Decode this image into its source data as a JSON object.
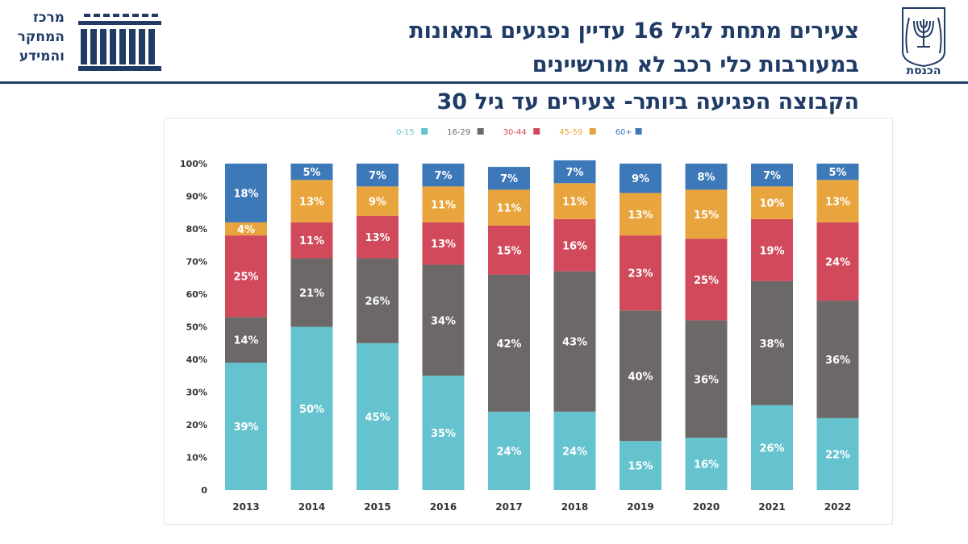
{
  "header": {
    "title_line1": "צעירים מתחת לגיל 16 עדיין נפגעים בתאונות",
    "title_line2": "במעורבות כלי רכב לא מורשיינים",
    "subtitle": "הקבוצה הפגיעה ביותר- צעירים עד גיל 30",
    "logo_left_text": [
      "מרכז",
      "המחקר",
      "והמידע"
    ],
    "logo_right_text": "הכנסת"
  },
  "colors": {
    "0-15": "#64c3cf",
    "16-29": "#6d6868",
    "30-44": "#d14a5c",
    "45-59": "#e9a53d",
    "60+": "#3d78b9",
    "brand": "#1f3b66"
  },
  "chart_data": {
    "type": "bar",
    "stacked": true,
    "categories": [
      "2013",
      "2014",
      "2015",
      "2016",
      "2017",
      "2018",
      "2019",
      "2020",
      "2021",
      "2022"
    ],
    "series": [
      {
        "name": "0-15",
        "values": [
          39,
          50,
          45,
          35,
          24,
          24,
          15,
          16,
          26,
          22
        ]
      },
      {
        "name": "16-29",
        "values": [
          14,
          21,
          26,
          34,
          42,
          43,
          40,
          36,
          38,
          36
        ]
      },
      {
        "name": "30-44",
        "values": [
          25,
          11,
          13,
          13,
          15,
          16,
          23,
          25,
          19,
          24
        ]
      },
      {
        "name": "45-59",
        "values": [
          4,
          13,
          9,
          11,
          11,
          11,
          13,
          15,
          10,
          13
        ]
      },
      {
        "name": "60+",
        "values": [
          18,
          5,
          7,
          7,
          7,
          7,
          9,
          8,
          7,
          5
        ]
      }
    ],
    "yticks": [
      "0",
      "10%",
      "20%",
      "30%",
      "40%",
      "50%",
      "60%",
      "70%",
      "80%",
      "90%",
      "100%"
    ],
    "ylim": [
      0,
      100
    ],
    "legend_position": "top",
    "grid": false,
    "data_label_suffix": "%"
  }
}
